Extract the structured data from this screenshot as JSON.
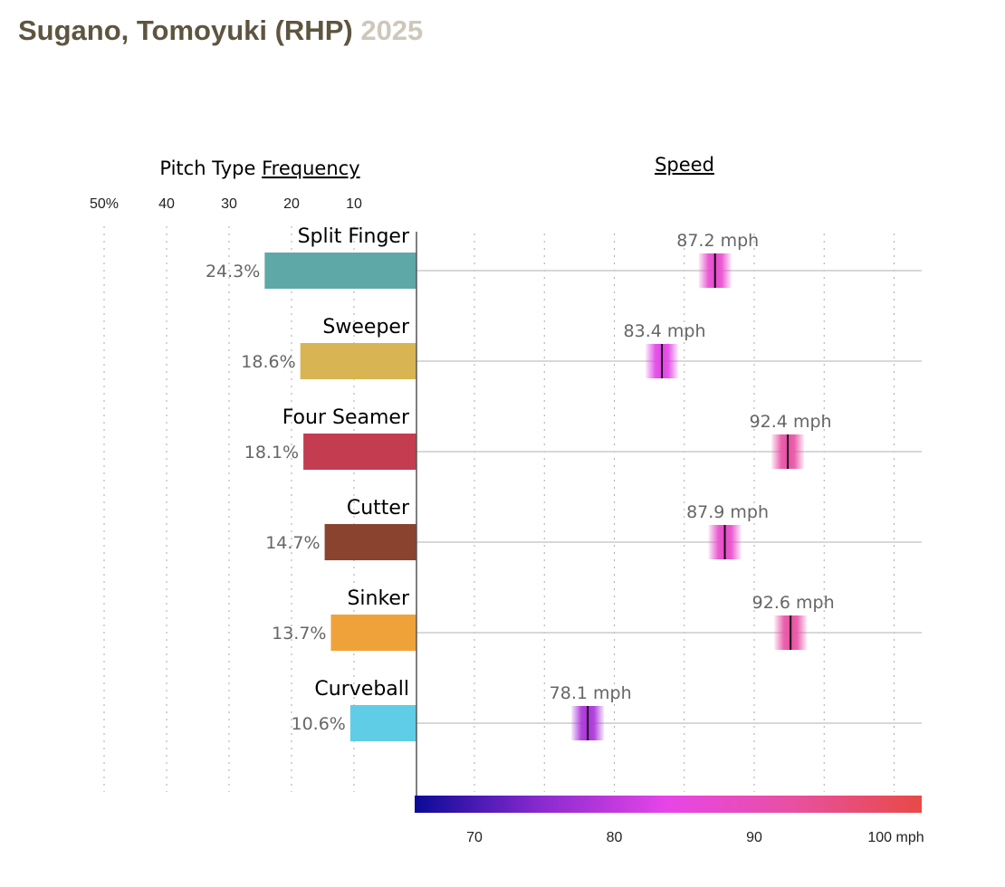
{
  "title": {
    "name": "Sugano, Tomoyuki (RHP)",
    "year": "2025"
  },
  "chart_data": [
    {
      "type": "bar",
      "title_prefix": "Pitch Type",
      "title_link": "Frequency",
      "categories": [
        "Split Finger",
        "Sweeper",
        "Four Seamer",
        "Cutter",
        "Sinker",
        "Curveball"
      ],
      "values": [
        24.3,
        18.6,
        18.1,
        14.7,
        13.7,
        10.6
      ],
      "value_labels": [
        "24.3%",
        "18.6%",
        "18.1%",
        "14.7%",
        "13.7%",
        "10.6%"
      ],
      "colors": [
        "#5ea9a8",
        "#d8b552",
        "#c43c50",
        "#8a432f",
        "#f0a23a",
        "#5fcde6"
      ],
      "ticks": [
        10,
        20,
        30,
        40,
        50
      ],
      "tick_labels": [
        "10",
        "20",
        "30",
        "40",
        "50%"
      ],
      "xlim": [
        0,
        50
      ],
      "orientation": "horizontal-reversed"
    },
    {
      "type": "scatter",
      "title": "Speed",
      "categories": [
        "Split Finger",
        "Sweeper",
        "Four Seamer",
        "Cutter",
        "Sinker",
        "Curveball"
      ],
      "values": [
        87.2,
        83.4,
        92.4,
        87.9,
        92.6,
        78.1
      ],
      "value_labels": [
        "87.2 mph",
        "83.4 mph",
        "92.4 mph",
        "87.9 mph",
        "92.6 mph",
        "78.1 mph"
      ],
      "xlim": [
        66,
        102
      ],
      "grid_step": 5,
      "ticks": [
        70,
        80,
        90,
        100
      ],
      "tick_labels": [
        "70",
        "80",
        "90",
        "100 mph"
      ],
      "colorscale": [
        "#0a0a98",
        "#8a2ad0",
        "#e845e8",
        "#e850a0",
        "#e84a45"
      ]
    }
  ]
}
